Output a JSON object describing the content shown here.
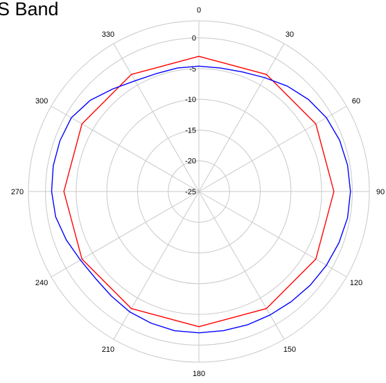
{
  "chart_data": {
    "type": "polar-line",
    "title": "S Band",
    "angle_labels": [
      "0",
      "30",
      "60",
      "90",
      "120",
      "150",
      "180",
      "210",
      "240",
      "270",
      "300",
      "330"
    ],
    "radial_tick_labels": [
      "0",
      "-5",
      "-10",
      "-15",
      "-20",
      "-25"
    ],
    "rlim": [
      -25,
      0
    ],
    "theta_direction": "clockwise",
    "theta_zero": "top",
    "grid": true,
    "series": [
      {
        "color": "#ff0000",
        "theta": [
          0,
          30,
          60,
          90,
          120,
          150,
          180,
          210,
          240,
          270,
          300,
          330,
          360
        ],
        "values": [
          -3.0,
          -3.0,
          -3.0,
          -3.0,
          -3.0,
          -3.0,
          -3.0,
          -3.0,
          -3.0,
          -3.0,
          -3.0,
          -3.0,
          -3.0
        ]
      },
      {
        "color": "#0000ff",
        "theta": [
          0,
          10,
          20,
          30,
          40,
          50,
          60,
          70,
          80,
          90,
          100,
          110,
          120,
          130,
          140,
          150,
          160,
          170,
          180,
          190,
          200,
          210,
          220,
          230,
          240,
          250,
          260,
          270,
          280,
          290,
          300,
          310,
          320,
          330,
          340,
          350,
          360
        ],
        "values": [
          -4.6,
          -4.6,
          -4.3,
          -3.6,
          -2.6,
          -1.7,
          -1.0,
          -0.6,
          -0.4,
          -0.3,
          -0.4,
          -0.7,
          -1.0,
          -1.3,
          -1.6,
          -1.8,
          -1.9,
          -2.0,
          -2.0,
          -2.0,
          -2.2,
          -2.4,
          -2.8,
          -3.0,
          -2.7,
          -2.0,
          -1.3,
          -1.0,
          -0.9,
          -0.9,
          -1.0,
          -1.9,
          -3.2,
          -4.2,
          -4.6,
          -4.6,
          -4.6
        ]
      }
    ]
  }
}
